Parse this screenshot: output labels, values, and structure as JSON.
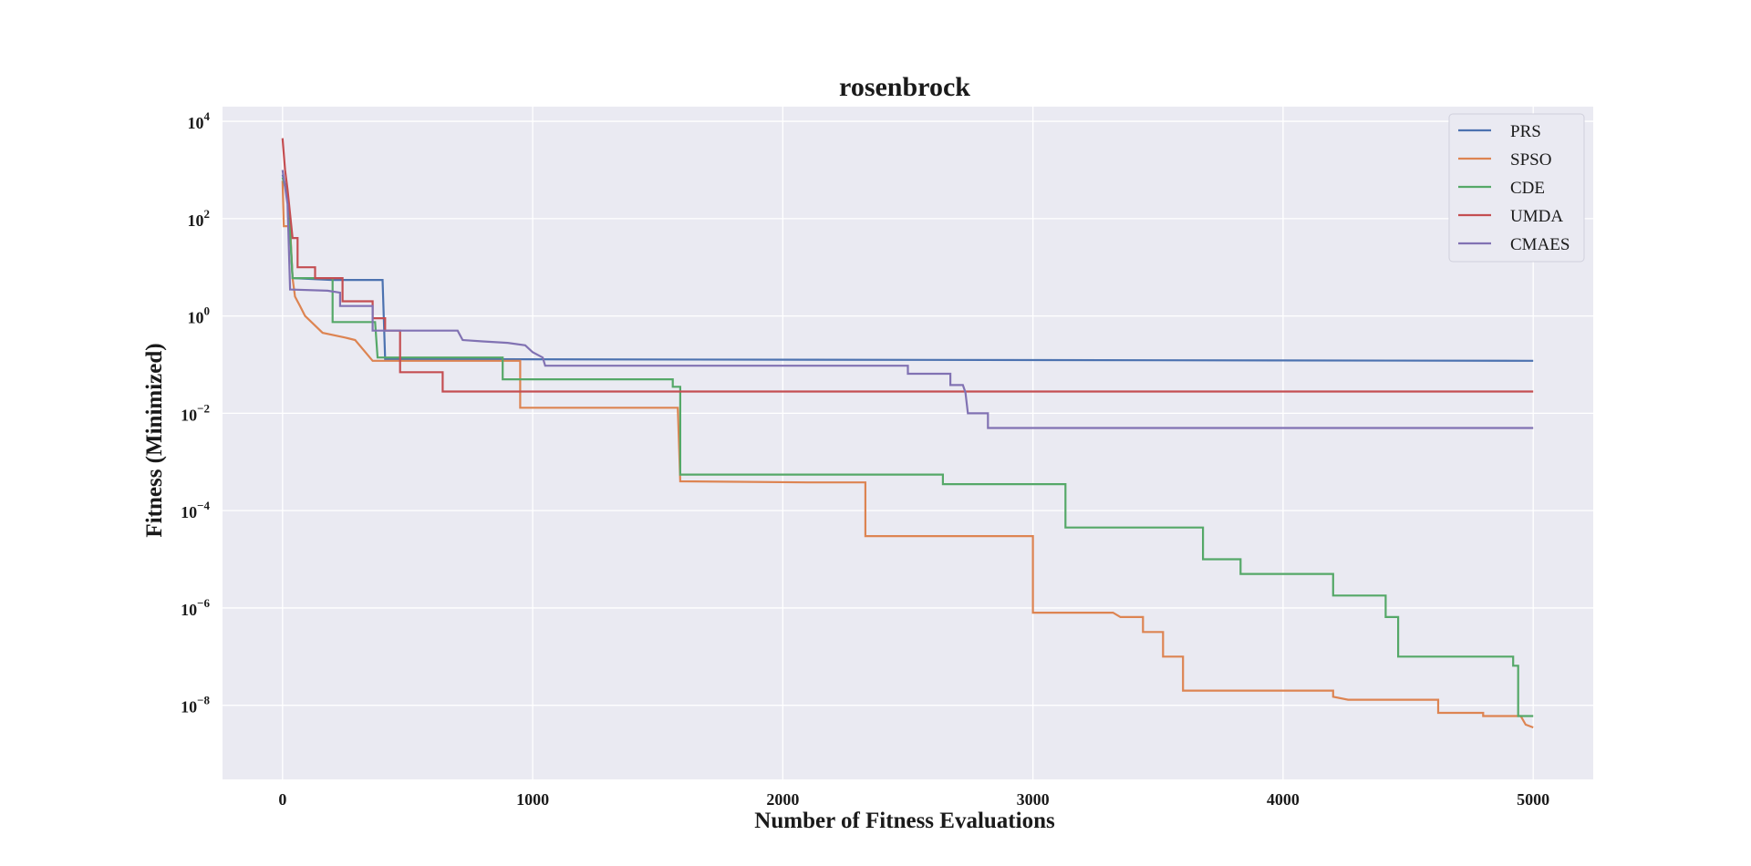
{
  "chart_data": {
    "type": "line",
    "title": "rosenbrock",
    "xlabel": "Number of Fitness Evaluations",
    "ylabel": "Fitness (Minimized)",
    "xlim": [
      -240,
      5240
    ],
    "ylim": [
      3e-10,
      20000
    ],
    "yscale": "log",
    "grid": true,
    "legend_position": "top-right",
    "x_ticks": [
      {
        "value": 0,
        "label": "0"
      },
      {
        "value": 1000,
        "label": "1000"
      },
      {
        "value": 2000,
        "label": "2000"
      },
      {
        "value": 3000,
        "label": "3000"
      },
      {
        "value": 4000,
        "label": "4000"
      },
      {
        "value": 5000,
        "label": "5000"
      }
    ],
    "y_ticks": [
      {
        "value": 10000,
        "base": "10",
        "exp": "4"
      },
      {
        "value": 100,
        "base": "10",
        "exp": "2"
      },
      {
        "value": 1,
        "base": "10",
        "exp": "0"
      },
      {
        "value": 0.01,
        "base": "10",
        "exp": "−2"
      },
      {
        "value": 0.0001,
        "base": "10",
        "exp": "−4"
      },
      {
        "value": 1e-06,
        "base": "10",
        "exp": "−6"
      },
      {
        "value": 1e-08,
        "base": "10",
        "exp": "−8"
      }
    ],
    "series": [
      {
        "name": "PRS",
        "color": "#4c72b0",
        "points": [
          [
            0,
            800
          ],
          [
            10,
            500
          ],
          [
            20,
            250
          ],
          [
            30,
            60
          ],
          [
            40,
            6
          ],
          [
            200,
            5.5
          ],
          [
            400,
            5.5
          ],
          [
            410,
            0.13
          ],
          [
            5000,
            0.12
          ]
        ]
      },
      {
        "name": "SPSO",
        "color": "#dd8452",
        "points": [
          [
            0,
            600
          ],
          [
            5,
            70
          ],
          [
            30,
            70
          ],
          [
            40,
            6
          ],
          [
            50,
            2.5
          ],
          [
            70,
            1.6
          ],
          [
            90,
            1.0
          ],
          [
            160,
            0.45
          ],
          [
            250,
            0.36
          ],
          [
            290,
            0.32
          ],
          [
            360,
            0.12
          ],
          [
            950,
            0.12
          ],
          [
            950,
            0.013
          ],
          [
            1580,
            0.013
          ],
          [
            1590,
            0.0004
          ],
          [
            2100,
            0.00038
          ],
          [
            2330,
            0.00038
          ],
          [
            2330,
            3e-05
          ],
          [
            3000,
            3e-05
          ],
          [
            3000,
            8e-07
          ],
          [
            3320,
            8e-07
          ],
          [
            3350,
            6.5e-07
          ],
          [
            3440,
            6.5e-07
          ],
          [
            3440,
            3.2e-07
          ],
          [
            3520,
            3.2e-07
          ],
          [
            3520,
            1e-07
          ],
          [
            3600,
            1e-07
          ],
          [
            3600,
            2e-08
          ],
          [
            4200,
            2e-08
          ],
          [
            4200,
            1.5e-08
          ],
          [
            4260,
            1.3e-08
          ],
          [
            4620,
            1.3e-08
          ],
          [
            4620,
            7e-09
          ],
          [
            4800,
            7e-09
          ],
          [
            4800,
            6e-09
          ],
          [
            4950,
            6e-09
          ],
          [
            4970,
            4e-09
          ],
          [
            5000,
            3.5e-09
          ]
        ]
      },
      {
        "name": "CDE",
        "color": "#55a868",
        "points": [
          [
            0,
            700
          ],
          [
            20,
            300
          ],
          [
            30,
            50
          ],
          [
            40,
            6
          ],
          [
            120,
            6
          ],
          [
            120,
            6
          ],
          [
            200,
            6
          ],
          [
            200,
            0.75
          ],
          [
            370,
            0.75
          ],
          [
            380,
            0.14
          ],
          [
            880,
            0.14
          ],
          [
            880,
            0.05
          ],
          [
            1560,
            0.05
          ],
          [
            1560,
            0.035
          ],
          [
            1590,
            0.035
          ],
          [
            1590,
            0.00055
          ],
          [
            2640,
            0.00055
          ],
          [
            2640,
            0.00035
          ],
          [
            3130,
            0.00035
          ],
          [
            3130,
            4.5e-05
          ],
          [
            3680,
            4.5e-05
          ],
          [
            3680,
            1e-05
          ],
          [
            3830,
            1e-05
          ],
          [
            3830,
            5e-06
          ],
          [
            4200,
            5e-06
          ],
          [
            4200,
            1.8e-06
          ],
          [
            4410,
            1.8e-06
          ],
          [
            4410,
            6.5e-07
          ],
          [
            4460,
            6.5e-07
          ],
          [
            4460,
            1e-07
          ],
          [
            4920,
            1e-07
          ],
          [
            4920,
            6.5e-08
          ],
          [
            4940,
            6.5e-08
          ],
          [
            4940,
            6e-09
          ],
          [
            5000,
            6e-09
          ]
        ]
      },
      {
        "name": "UMDA",
        "color": "#c44e52",
        "points": [
          [
            0,
            4500
          ],
          [
            10,
            1000
          ],
          [
            20,
            400
          ],
          [
            40,
            40
          ],
          [
            60,
            40
          ],
          [
            60,
            10
          ],
          [
            130,
            10
          ],
          [
            130,
            6
          ],
          [
            240,
            6
          ],
          [
            240,
            2
          ],
          [
            360,
            2
          ],
          [
            360,
            0.9
          ],
          [
            410,
            0.9
          ],
          [
            410,
            0.5
          ],
          [
            470,
            0.5
          ],
          [
            470,
            0.07
          ],
          [
            640,
            0.07
          ],
          [
            640,
            0.028
          ],
          [
            5000,
            0.028
          ]
        ]
      },
      {
        "name": "CMAES",
        "color": "#8172b3",
        "points": [
          [
            0,
            1000
          ],
          [
            20,
            200
          ],
          [
            30,
            3.5
          ],
          [
            180,
            3.3
          ],
          [
            230,
            3.0
          ],
          [
            230,
            1.6
          ],
          [
            360,
            1.6
          ],
          [
            360,
            0.5
          ],
          [
            700,
            0.5
          ],
          [
            720,
            0.32
          ],
          [
            800,
            0.3
          ],
          [
            900,
            0.28
          ],
          [
            970,
            0.25
          ],
          [
            1000,
            0.18
          ],
          [
            1040,
            0.14
          ],
          [
            1050,
            0.095
          ],
          [
            2500,
            0.095
          ],
          [
            2500,
            0.065
          ],
          [
            2670,
            0.065
          ],
          [
            2670,
            0.038
          ],
          [
            2720,
            0.038
          ],
          [
            2730,
            0.027
          ],
          [
            2740,
            0.01
          ],
          [
            2820,
            0.01
          ],
          [
            2820,
            0.005
          ],
          [
            5000,
            0.005
          ]
        ]
      }
    ]
  }
}
